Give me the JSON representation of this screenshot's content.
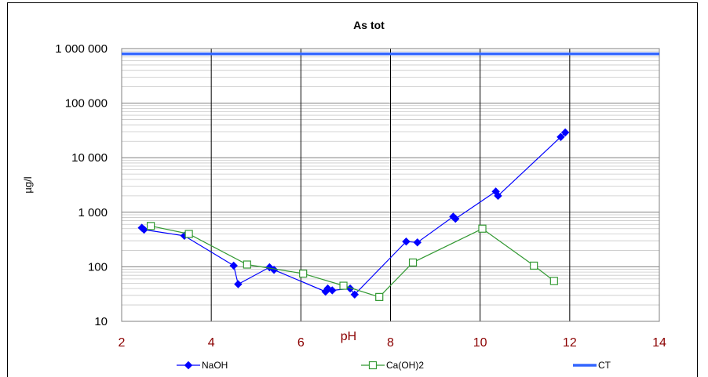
{
  "chart_data": {
    "type": "scatter",
    "title": "As tot",
    "xlabel": "pH",
    "ylabel": "µg/l",
    "xlim": [
      2,
      14
    ],
    "ylim": [
      10,
      1000000
    ],
    "yscale": "log",
    "x_ticks": [
      "2",
      "4",
      "6",
      "8",
      "10",
      "12",
      "14"
    ],
    "y_ticks": [
      "10",
      "100",
      "1 000",
      "10 000",
      "100 000",
      "1 000 000"
    ],
    "grid": true,
    "legend_position": "bottom",
    "series": [
      {
        "name": "NaOH",
        "color": "#0000ff",
        "marker": "diamond-filled",
        "points": [
          [
            2.45,
            520
          ],
          [
            2.5,
            480
          ],
          [
            3.4,
            370
          ],
          [
            4.5,
            105
          ],
          [
            4.6,
            48
          ],
          [
            5.3,
            98
          ],
          [
            5.4,
            88
          ],
          [
            6.55,
            35
          ],
          [
            6.6,
            40
          ],
          [
            6.7,
            37
          ],
          [
            7.1,
            40
          ],
          [
            7.2,
            31
          ],
          [
            8.35,
            290
          ],
          [
            8.6,
            280
          ],
          [
            9.4,
            830
          ],
          [
            9.45,
            760
          ],
          [
            10.35,
            2400
          ],
          [
            10.4,
            2000
          ],
          [
            11.8,
            24000
          ],
          [
            11.9,
            29000
          ]
        ]
      },
      {
        "name": "Ca(OH)2",
        "color": "#339933",
        "marker": "square-open",
        "points": [
          [
            2.65,
            560
          ],
          [
            3.5,
            400
          ],
          [
            4.8,
            110
          ],
          [
            6.05,
            75
          ],
          [
            6.95,
            45
          ],
          [
            7.75,
            28
          ],
          [
            8.5,
            120
          ],
          [
            10.05,
            500
          ],
          [
            11.2,
            105
          ],
          [
            11.65,
            55
          ]
        ]
      },
      {
        "name": "CT",
        "color": "#3366ff",
        "marker": "none",
        "points": [
          [
            2,
            800000
          ],
          [
            14,
            800000
          ]
        ]
      }
    ]
  }
}
